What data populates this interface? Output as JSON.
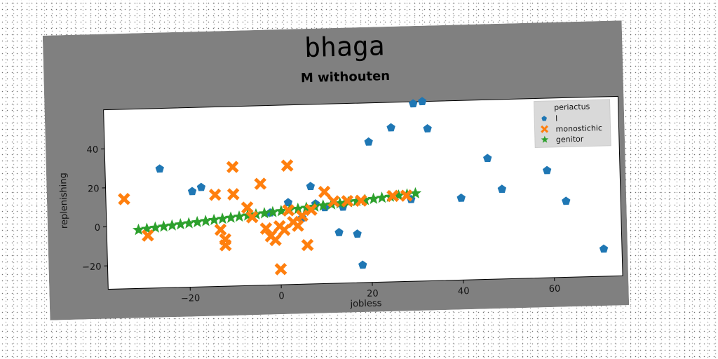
{
  "chart_data": {
    "type": "scatter",
    "title": "bhaga",
    "subtitle": "M withouten",
    "xlabel": "jobless",
    "ylabel": "replenishing",
    "xlim": [
      -38,
      75
    ],
    "ylim": [
      -32,
      60
    ],
    "xticks": [
      -20,
      0,
      20,
      40,
      60
    ],
    "yticks": [
      -20,
      0,
      20,
      40
    ],
    "tick_labels": {
      "x": [
        "−20",
        "0",
        "20",
        "40",
        "60"
      ],
      "y": [
        "−20",
        "0",
        "20",
        "40"
      ]
    },
    "grid": false,
    "legend": {
      "title": "periactus",
      "position": "top-right"
    },
    "series": [
      {
        "name": "l",
        "marker": "pentagon",
        "color": "#1f77b4",
        "points": [
          [
            -26,
            29
          ],
          [
            -19,
            17
          ],
          [
            -17,
            19
          ],
          [
            -2,
            5
          ],
          [
            2,
            10
          ],
          [
            5,
            2
          ],
          [
            7,
            18
          ],
          [
            8,
            9
          ],
          [
            10,
            7
          ],
          [
            13,
            -6
          ],
          [
            14,
            7
          ],
          [
            17,
            -7
          ],
          [
            18,
            -23
          ],
          [
            20,
            40
          ],
          [
            25,
            47
          ],
          [
            30,
            59
          ],
          [
            32,
            60
          ],
          [
            33,
            46
          ],
          [
            29,
            10
          ],
          [
            40,
            10
          ],
          [
            46,
            30
          ],
          [
            49,
            14
          ],
          [
            59,
            23
          ],
          [
            63,
            7
          ],
          [
            71,
            -18
          ]
        ]
      },
      {
        "name": "monostichic",
        "marker": "x",
        "color": "#ff7f0e",
        "points": [
          [
            -34,
            14
          ],
          [
            -29,
            -5
          ],
          [
            -14,
            15
          ],
          [
            -10,
            15
          ],
          [
            -10,
            29
          ],
          [
            -13,
            -3
          ],
          [
            -12,
            -8
          ],
          [
            -12,
            -11
          ],
          [
            -7,
            8
          ],
          [
            -6,
            3
          ],
          [
            -4,
            20
          ],
          [
            -3,
            -3
          ],
          [
            -2,
            -7
          ],
          [
            -1,
            -9
          ],
          [
            0,
            -2
          ],
          [
            0,
            -24
          ],
          [
            1,
            -4
          ],
          [
            2,
            29
          ],
          [
            2,
            6
          ],
          [
            3,
            0
          ],
          [
            4,
            -2
          ],
          [
            5,
            3
          ],
          [
            6,
            -12
          ],
          [
            7,
            6
          ],
          [
            10,
            15
          ],
          [
            12,
            10
          ],
          [
            15,
            10
          ],
          [
            18,
            10
          ],
          [
            25,
            12
          ],
          [
            28,
            12
          ]
        ]
      },
      {
        "name": "genitor",
        "marker": "star",
        "color": "#2ca02c",
        "line": {
          "x_start": -31,
          "x_end": 30,
          "y_start": -2,
          "y_end": 13,
          "count": 34
        }
      }
    ]
  }
}
